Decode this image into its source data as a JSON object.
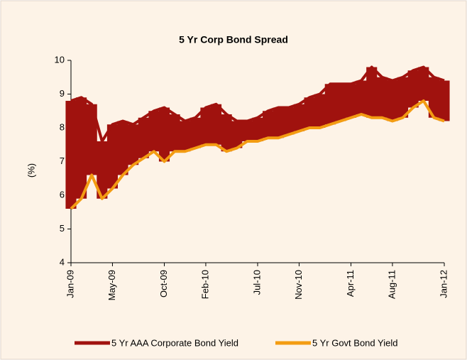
{
  "chart_data": {
    "type": "line",
    "title": "5 Yr Corp Bond Spread",
    "y_label": "(%)",
    "categories": [
      "Jan-09",
      null,
      null,
      null,
      "May-09",
      null,
      null,
      null,
      null,
      "Oct-09",
      null,
      null,
      null,
      "Feb-10",
      null,
      null,
      null,
      null,
      "Jul-10",
      null,
      null,
      null,
      "Nov-10",
      null,
      null,
      null,
      null,
      "Apr-11",
      null,
      null,
      null,
      "Aug-11",
      null,
      null,
      null,
      null,
      "Jan-12"
    ],
    "series": [
      {
        "name": "5 Yr AAA Corporate Bond Yield",
        "color": "#a0120e",
        "values": [
          8.8,
          8.9,
          8.7,
          7.6,
          8.1,
          8.2,
          8.1,
          8.3,
          8.5,
          8.6,
          8.4,
          8.2,
          8.3,
          8.6,
          8.7,
          8.4,
          8.2,
          8.2,
          8.3,
          8.5,
          8.6,
          8.6,
          8.7,
          8.9,
          9.0,
          9.3,
          9.3,
          9.3,
          9.4,
          9.8,
          9.5,
          9.4,
          9.5,
          9.7,
          9.8,
          9.5,
          9.4
        ]
      },
      {
        "name": "5 Yr Govt Bond Yield",
        "color": "#f39c12",
        "values": [
          5.6,
          5.9,
          6.6,
          5.9,
          6.2,
          6.6,
          6.9,
          7.1,
          7.3,
          7.0,
          7.3,
          7.3,
          7.4,
          7.5,
          7.5,
          7.3,
          7.4,
          7.6,
          7.6,
          7.7,
          7.7,
          7.8,
          7.9,
          8.0,
          8.0,
          8.1,
          8.2,
          8.3,
          8.4,
          8.3,
          8.3,
          8.2,
          8.3,
          8.6,
          8.8,
          8.3,
          8.2
        ]
      }
    ],
    "ylim": [
      4,
      10
    ],
    "yticks": [
      4,
      5,
      6,
      7,
      8,
      9,
      10
    ],
    "legend": "bottom"
  }
}
